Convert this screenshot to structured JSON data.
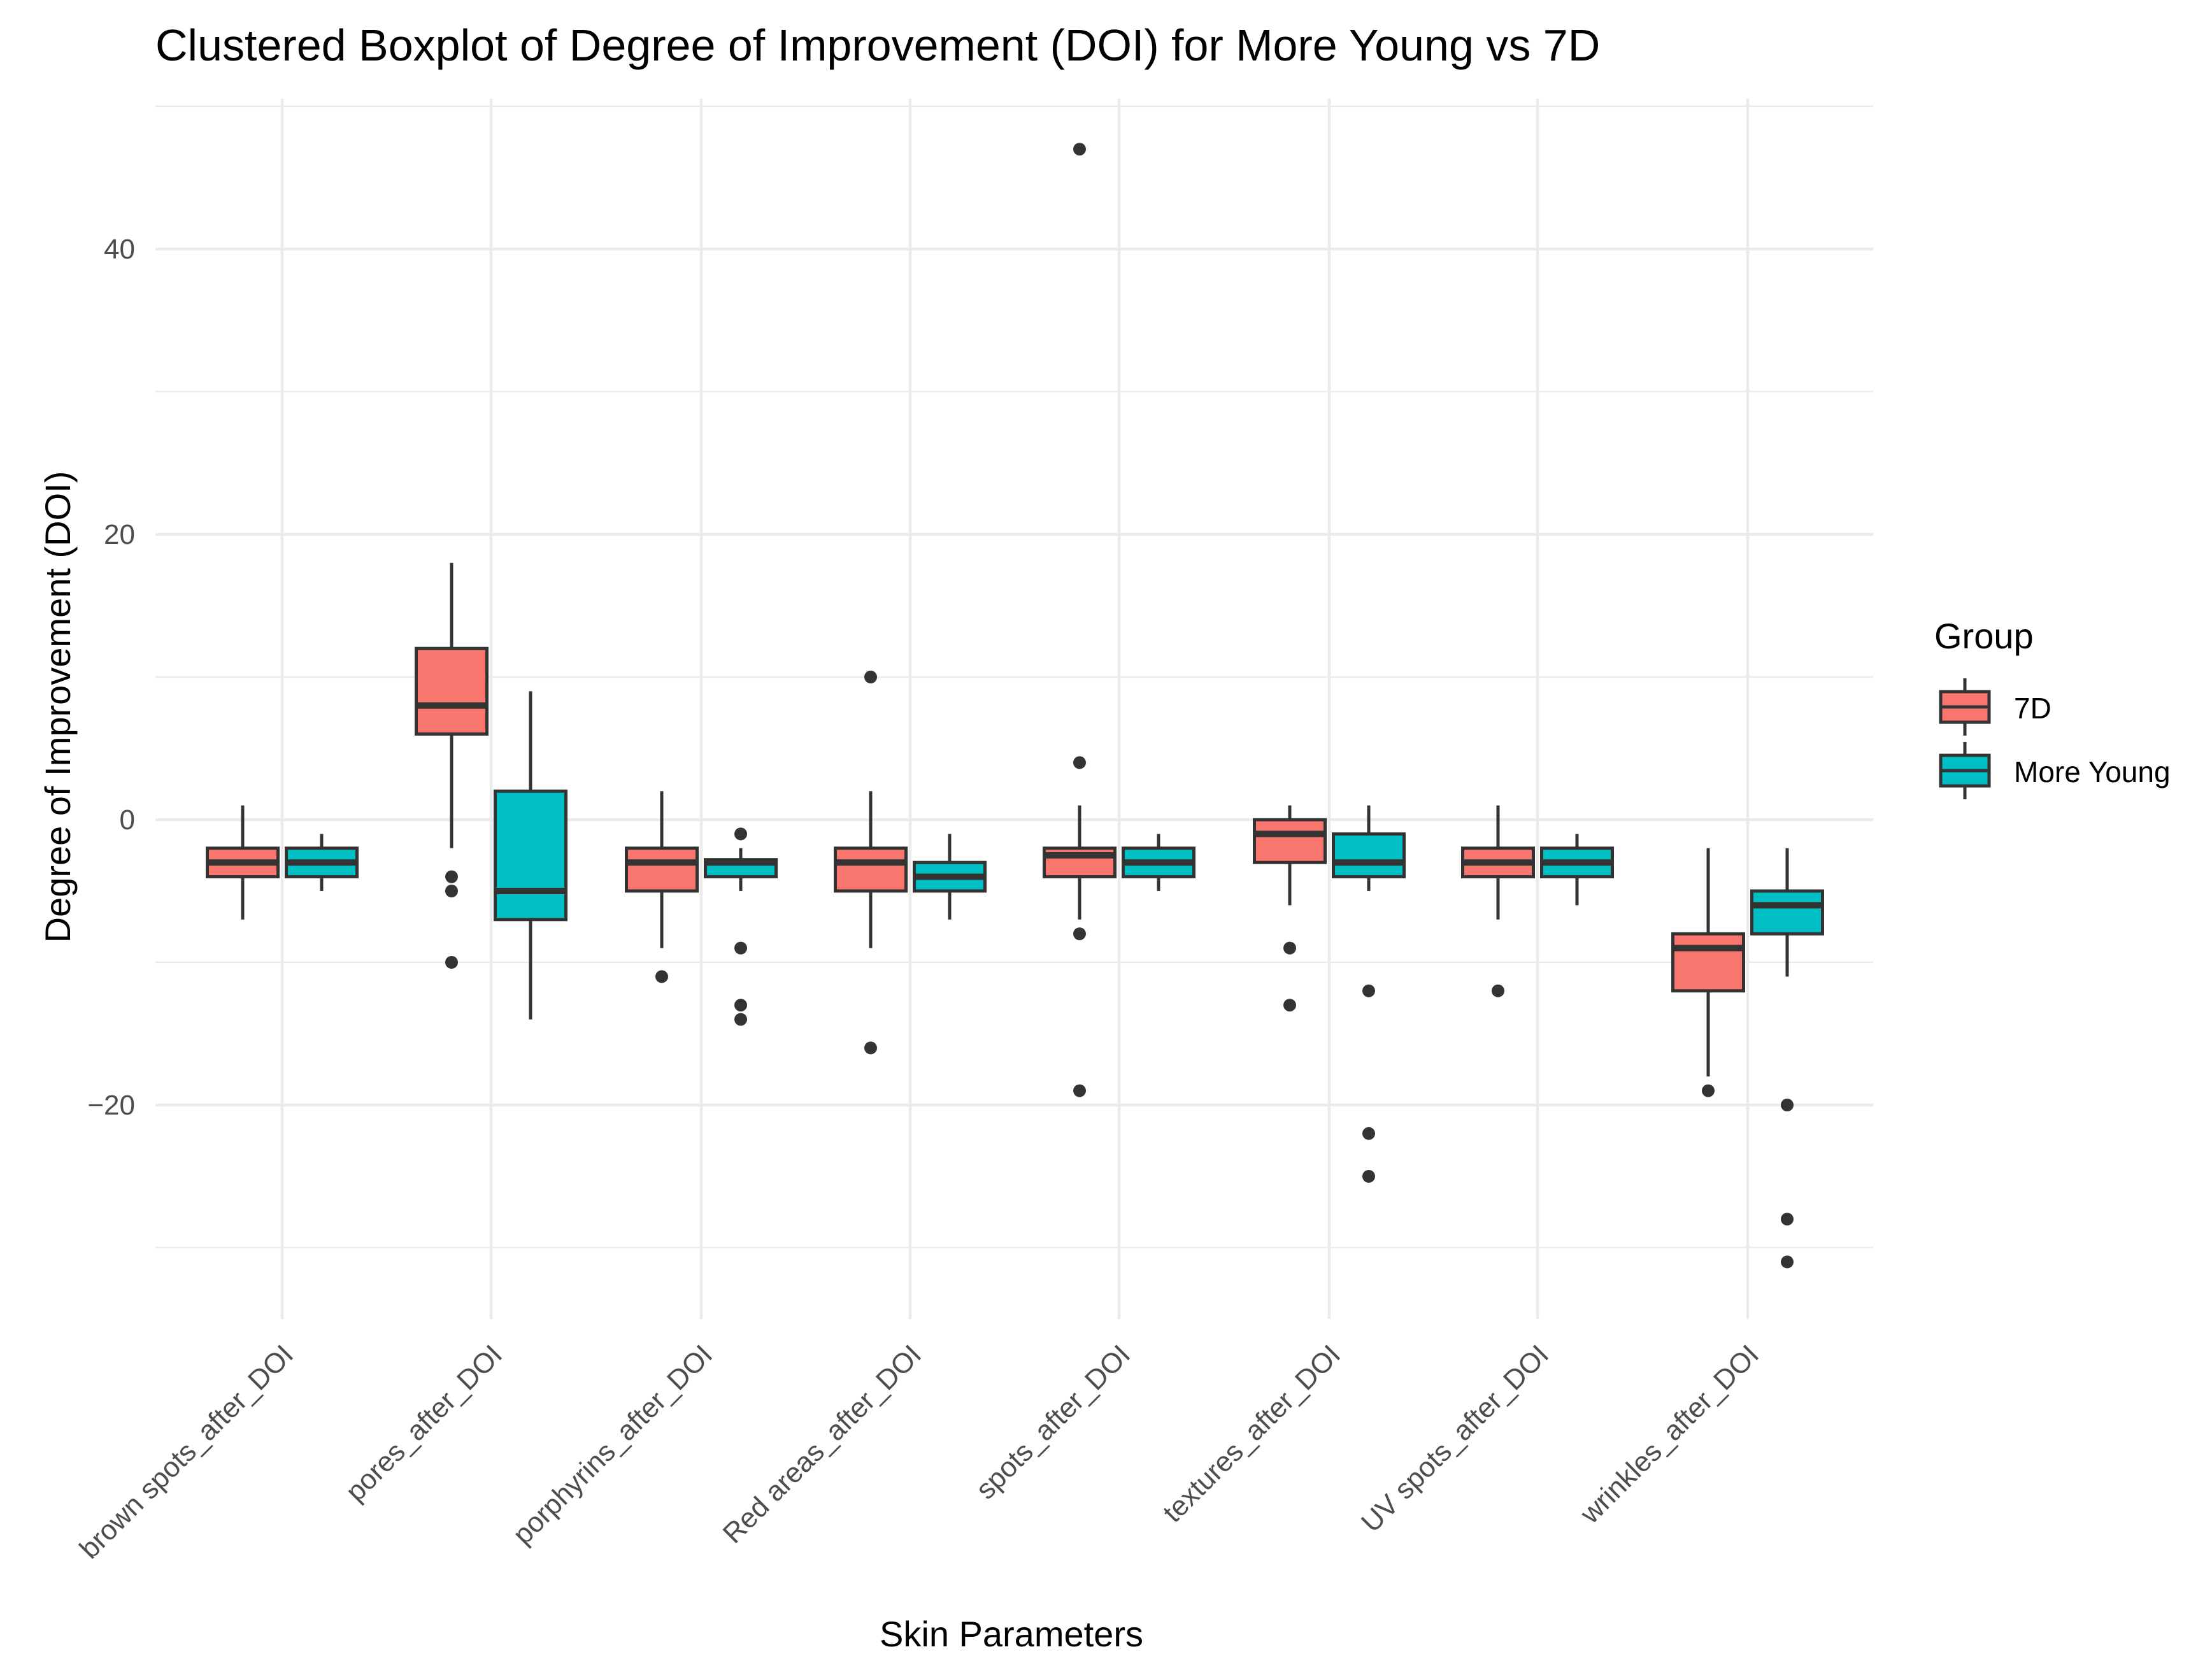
{
  "chart_data": {
    "type": "boxplot",
    "title": "Clustered Boxplot of Degree of Improvement (DOI) for More Young vs 7D",
    "xlabel": "Skin Parameters",
    "ylabel": "Degree of Improvement (DOI)",
    "ylim": [
      -35,
      50
    ],
    "yticks": [
      -20,
      0,
      20,
      40
    ],
    "ytick_labels": [
      "−20",
      "0",
      "20",
      "40"
    ],
    "grid": true,
    "legend": {
      "title": "Group",
      "position": "right",
      "entries": [
        "7D",
        "More Young"
      ]
    },
    "colors": {
      "7D": "#F8766D",
      "More Young": "#00BFC4"
    },
    "categories": [
      "brown spots_after_DOI",
      "pores_after_DOI",
      "porphyrins_after_DOI",
      "Red areas_after_DOI",
      "spots_after_DOI",
      "textures_after_DOI",
      "UV spots_after_DOI",
      "wrinkles_after_DOI"
    ],
    "series": [
      {
        "name": "7D",
        "boxes": [
          {
            "min": -7,
            "q1": -4,
            "median": -3,
            "q3": -2,
            "max": 1,
            "outliers": []
          },
          {
            "min": -2,
            "q1": 6,
            "median": 8,
            "q3": 12,
            "max": 18,
            "outliers": [
              -4,
              -5,
              -10
            ]
          },
          {
            "min": -9,
            "q1": -5,
            "median": -3,
            "q3": -2,
            "max": 2,
            "outliers": [
              -11
            ]
          },
          {
            "min": -9,
            "q1": -5,
            "median": -3,
            "q3": -2,
            "max": 2,
            "outliers": [
              10,
              -16
            ]
          },
          {
            "min": -7,
            "q1": -4,
            "median": -2.5,
            "q3": -2,
            "max": 1,
            "outliers": [
              47,
              4,
              -8,
              -19
            ]
          },
          {
            "min": -6,
            "q1": -3,
            "median": -1,
            "q3": 0,
            "max": 1,
            "outliers": [
              -9,
              -13
            ]
          },
          {
            "min": -7,
            "q1": -4,
            "median": -3,
            "q3": -2,
            "max": 1,
            "outliers": [
              -12
            ]
          },
          {
            "min": -18,
            "q1": -12,
            "median": -9,
            "q3": -8,
            "max": -2,
            "outliers": [
              -19
            ]
          }
        ]
      },
      {
        "name": "More Young",
        "boxes": [
          {
            "min": -5,
            "q1": -4,
            "median": -3,
            "q3": -2,
            "max": -1,
            "outliers": []
          },
          {
            "min": -14,
            "q1": -7,
            "median": -5,
            "q3": 2,
            "max": 9,
            "outliers": []
          },
          {
            "min": -5,
            "q1": -4,
            "median": -3,
            "q3": -2.8,
            "max": -2,
            "outliers": [
              -1,
              -9,
              -13,
              -14
            ]
          },
          {
            "min": -7,
            "q1": -5,
            "median": -4,
            "q3": -3,
            "max": -1,
            "outliers": []
          },
          {
            "min": -5,
            "q1": -4,
            "median": -3,
            "q3": -2,
            "max": -1,
            "outliers": []
          },
          {
            "min": -5,
            "q1": -4,
            "median": -3,
            "q3": -1,
            "max": 1,
            "outliers": [
              -12,
              -22,
              -25
            ]
          },
          {
            "min": -6,
            "q1": -4,
            "median": -3,
            "q3": -2,
            "max": -1,
            "outliers": []
          },
          {
            "min": -11,
            "q1": -8,
            "median": -6,
            "q3": -5,
            "max": -2,
            "outliers": [
              -20,
              -28,
              -31
            ]
          }
        ]
      }
    ]
  }
}
